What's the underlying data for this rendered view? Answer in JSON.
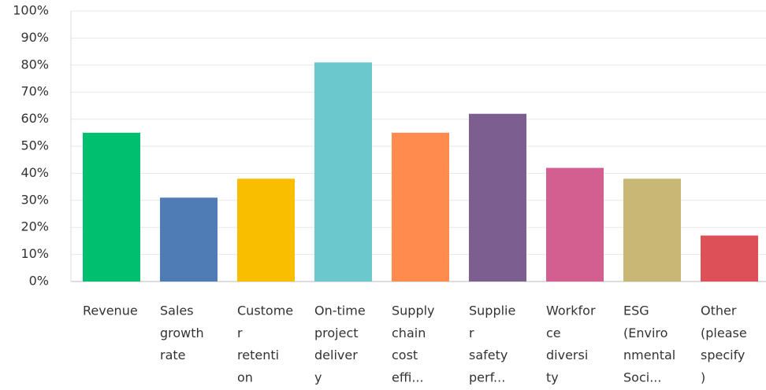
{
  "chart_data": {
    "type": "bar",
    "categories": [
      [
        "Revenue"
      ],
      [
        "Sales",
        "growth",
        "rate"
      ],
      [
        "Custome",
        "r",
        "retenti",
        "on"
      ],
      [
        "On-time",
        "project",
        "deliver",
        "y"
      ],
      [
        "Supply",
        "chain",
        "cost",
        "effi..."
      ],
      [
        "Supplie",
        "r",
        "safety",
        "perf..."
      ],
      [
        "Workfor",
        "ce",
        "diversi",
        "ty"
      ],
      [
        "ESG",
        "(Enviro",
        "nmental",
        "Soci..."
      ],
      [
        "Other",
        "(please",
        "specify",
        ")"
      ]
    ],
    "values": [
      55,
      31,
      38,
      81,
      55,
      62,
      42,
      38,
      17
    ],
    "colors": [
      "#00bf6f",
      "#507cb6",
      "#f9be00",
      "#6bc8cd",
      "#ff8b4f",
      "#7d5e90",
      "#d25f90",
      "#c9b775",
      "#dd5058"
    ],
    "ylim": [
      0,
      100
    ],
    "yticks": [
      {
        "value": 0,
        "label": "0%"
      },
      {
        "value": 10,
        "label": "10%"
      },
      {
        "value": 20,
        "label": "20%"
      },
      {
        "value": 30,
        "label": "30%"
      },
      {
        "value": 40,
        "label": "40%"
      },
      {
        "value": 50,
        "label": "50%"
      },
      {
        "value": 60,
        "label": "60%"
      },
      {
        "value": 70,
        "label": "70%"
      },
      {
        "value": 80,
        "label": "80%"
      },
      {
        "value": 90,
        "label": "90%"
      },
      {
        "value": 100,
        "label": "100%"
      }
    ],
    "grid": true
  }
}
